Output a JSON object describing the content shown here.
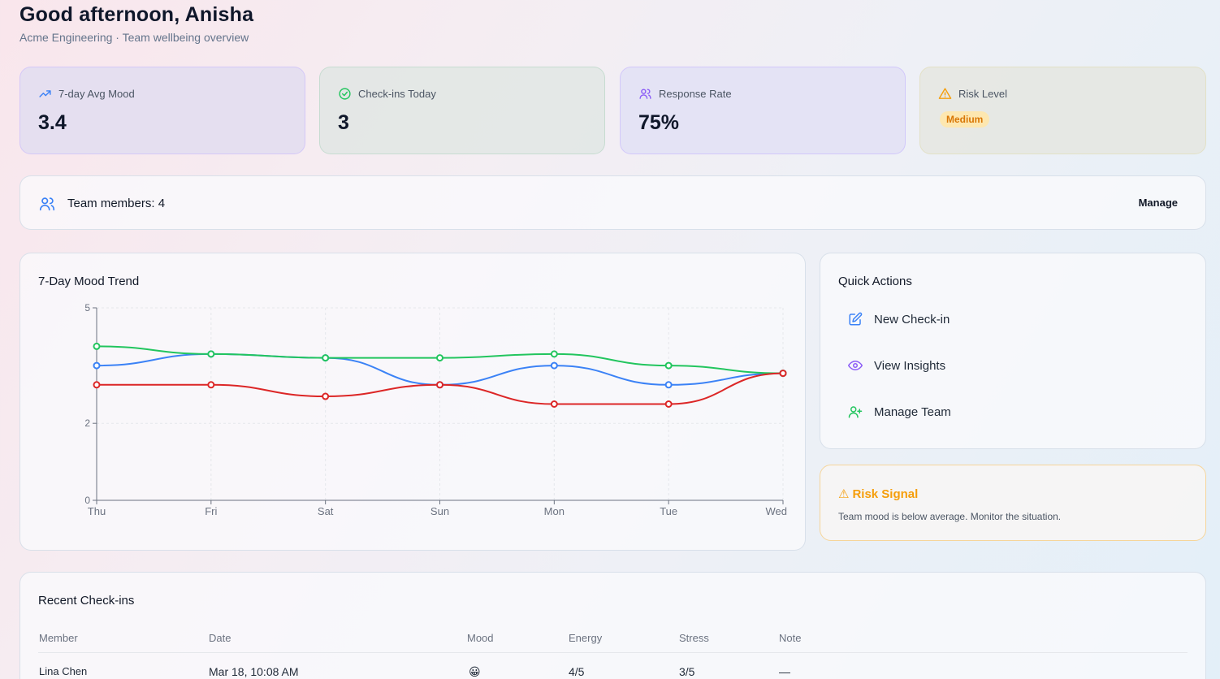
{
  "header": {
    "greeting": "Good afternoon, Anisha",
    "subtitle": "Acme Engineering · Team wellbeing overview"
  },
  "stats": [
    {
      "label": "7-day Avg Mood",
      "value": "3.4",
      "icon": "trending-up-icon"
    },
    {
      "label": "Check-ins Today",
      "value": "3",
      "icon": "check-circle-icon"
    },
    {
      "label": "Response Rate",
      "value": "75%",
      "icon": "users-icon"
    },
    {
      "label": "Risk Level",
      "value": "Medium",
      "icon": "warning-icon"
    }
  ],
  "team": {
    "label": "Team members: 4",
    "manage_label": "Manage"
  },
  "chart_data": {
    "type": "line",
    "title": "7-Day Mood Trend",
    "categories": [
      "Thu",
      "Fri",
      "Sat",
      "Sun",
      "Mon",
      "Tue",
      "Wed"
    ],
    "yticks": [
      0,
      2,
      5
    ],
    "ylim": [
      0,
      5
    ],
    "grid": true,
    "series": [
      {
        "name": "blue",
        "color": "#3b82f6",
        "values": [
          3.5,
          3.8,
          3.7,
          3.0,
          3.5,
          3.0,
          3.3
        ]
      },
      {
        "name": "green",
        "color": "#22c55e",
        "values": [
          4.0,
          3.8,
          3.7,
          3.7,
          3.8,
          3.5,
          3.3
        ]
      },
      {
        "name": "red",
        "color": "#dc2626",
        "values": [
          3.0,
          3.0,
          2.7,
          3.0,
          2.5,
          2.5,
          3.3
        ]
      }
    ]
  },
  "quick_actions": {
    "title": "Quick Actions",
    "items": [
      {
        "label": "New Check-in",
        "icon": "edit-icon"
      },
      {
        "label": "View Insights",
        "icon": "eye-icon"
      },
      {
        "label": "Manage Team",
        "icon": "user-plus-icon"
      }
    ]
  },
  "risk_signal": {
    "title": "Risk Signal",
    "title_glyph": "⚠",
    "text": "Team mood is below average. Monitor the situation."
  },
  "recent": {
    "title": "Recent Check-ins",
    "columns": [
      "Member",
      "Date",
      "Mood",
      "Energy",
      "Stress",
      "Note"
    ],
    "rows": [
      {
        "member": "Lina Chen",
        "date": "Mar 18, 10:08 AM",
        "mood": "😀",
        "energy": "4/5",
        "stress": "3/5",
        "note": "—"
      }
    ]
  },
  "colors": {
    "accent_blue": "#3b82f6",
    "accent_green": "#22c55e",
    "accent_purple": "#8b5cf6",
    "warning": "#f59e0b"
  }
}
